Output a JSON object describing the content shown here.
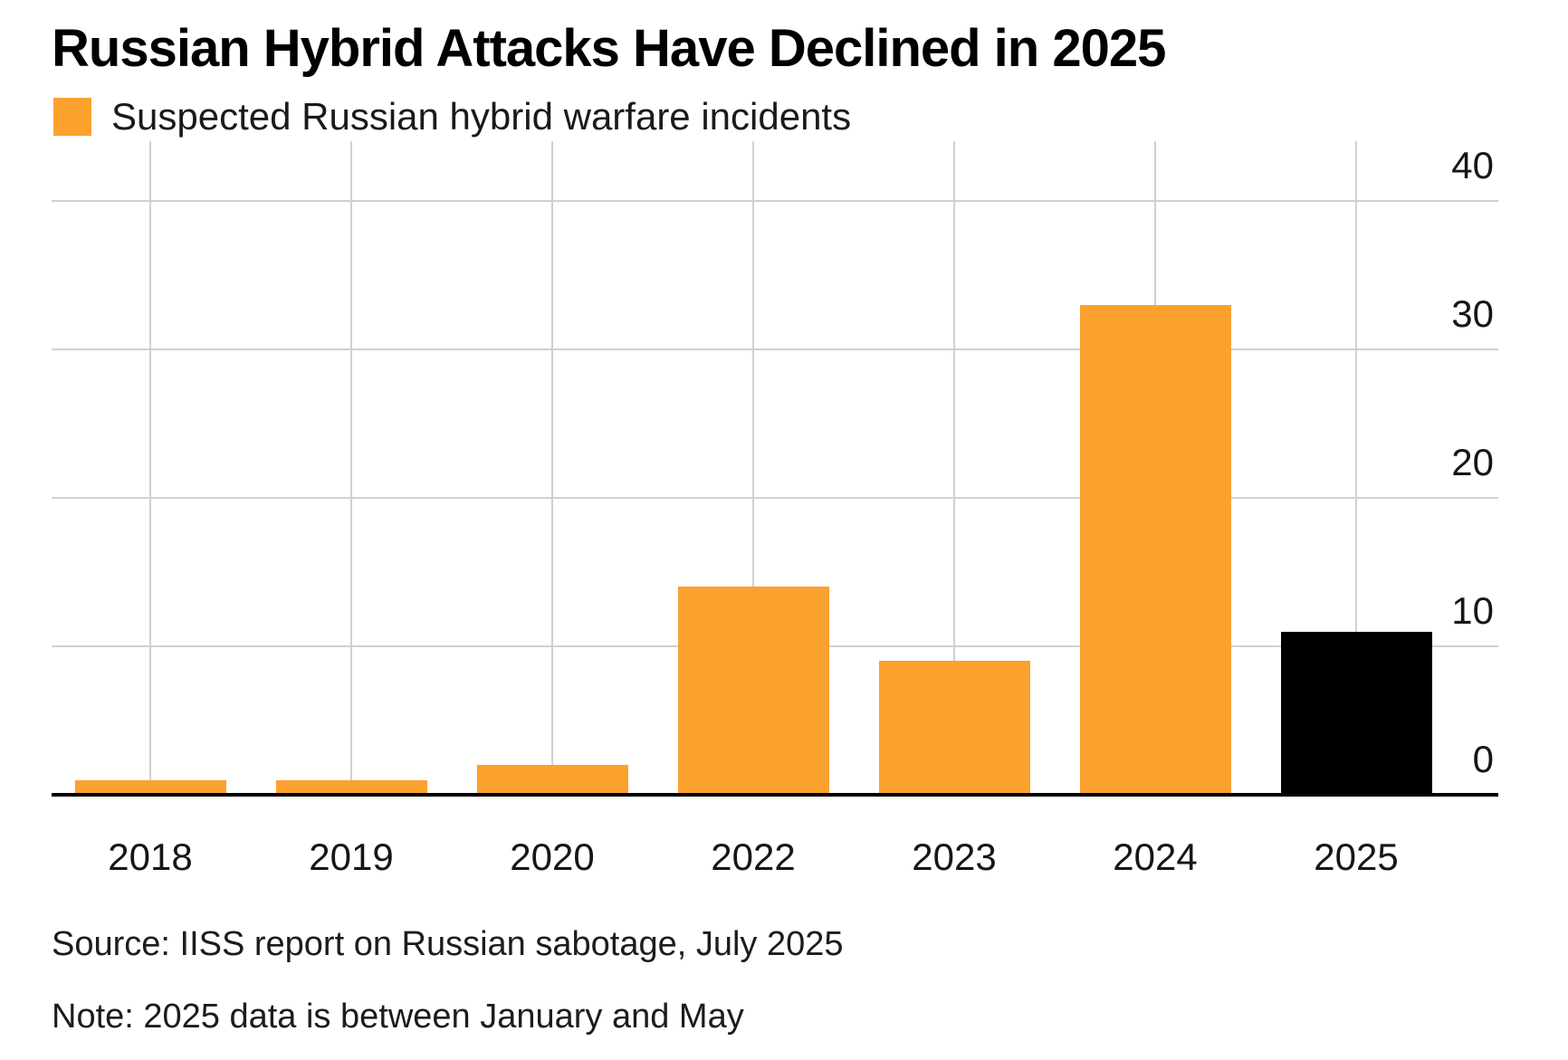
{
  "title": "Russian Hybrid Attacks Have Declined in 2025",
  "legend": {
    "label": "Suspected Russian hybrid warfare incidents",
    "swatch_icon": "orange-square-icon"
  },
  "source": "Source: IISS report on Russian sabotage, July 2025",
  "note": "Note: 2025 data is between January and May",
  "colors": {
    "bar_orange": "#FBA12D",
    "bar_black": "#000000",
    "gridline": "#D0D0D0",
    "baseline": "#000000",
    "text": "#161616"
  },
  "chart_data": {
    "type": "bar",
    "title": "Russian Hybrid Attacks Have Declined in 2025",
    "legend_entries": [
      "Suspected Russian hybrid warfare incidents"
    ],
    "categories": [
      "2018",
      "2019",
      "2020",
      "2022",
      "2023",
      "2024",
      "2025"
    ],
    "values": [
      1,
      1,
      2,
      14,
      9,
      33,
      11
    ],
    "bar_colors": [
      "#FBA12D",
      "#FBA12D",
      "#FBA12D",
      "#FBA12D",
      "#FBA12D",
      "#FBA12D",
      "#000000"
    ],
    "xlabel": "",
    "ylabel": "",
    "ylim": [
      0,
      44
    ],
    "yticks": [
      0,
      10,
      20,
      30,
      40
    ],
    "ytick_side": "right",
    "grid": true,
    "legend_position": "top-left",
    "annotations": []
  }
}
